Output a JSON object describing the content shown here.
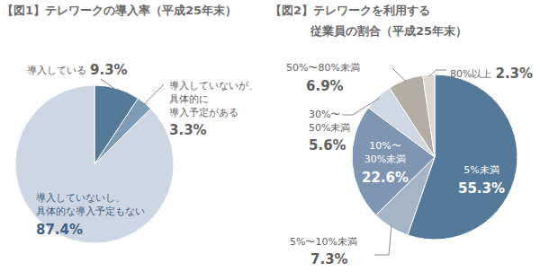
{
  "chart_data": [
    {
      "type": "pie",
      "title": "【図1】テレワークの導入率（平成25年末）",
      "categories": [
        "導入している",
        "導入していないが、\n具体的に\n導入予定がある",
        "導入していないし、\n具体的な導入予定もない"
      ],
      "values": [
        9.3,
        3.3,
        87.4
      ],
      "value_labels": [
        "9.3%",
        "3.3%",
        "87.4%"
      ],
      "colors": [
        "#557a99",
        "#7e9bb5",
        "#cdd6e2"
      ],
      "data_labels": true
    },
    {
      "type": "pie",
      "title": "【図2】テレワークを利用する\n従業員の割合（平成25年末）",
      "categories": [
        "5%未満",
        "5%〜10%未満",
        "10%〜\n30%未満",
        "30%〜\n50%未満",
        "50%〜80%未満",
        "80%以上"
      ],
      "values": [
        55.3,
        7.3,
        22.6,
        5.6,
        6.9,
        2.3
      ],
      "value_labels": [
        "55.3%",
        "7.3%",
        "22.6%",
        "5.6%",
        "6.9%",
        "2.3%"
      ],
      "colors": [
        "#557a99",
        "#a5b5c7",
        "#7e96b1",
        "#cfd8e3",
        "#b3ada5",
        "#dad6d0"
      ],
      "data_labels": true
    }
  ]
}
